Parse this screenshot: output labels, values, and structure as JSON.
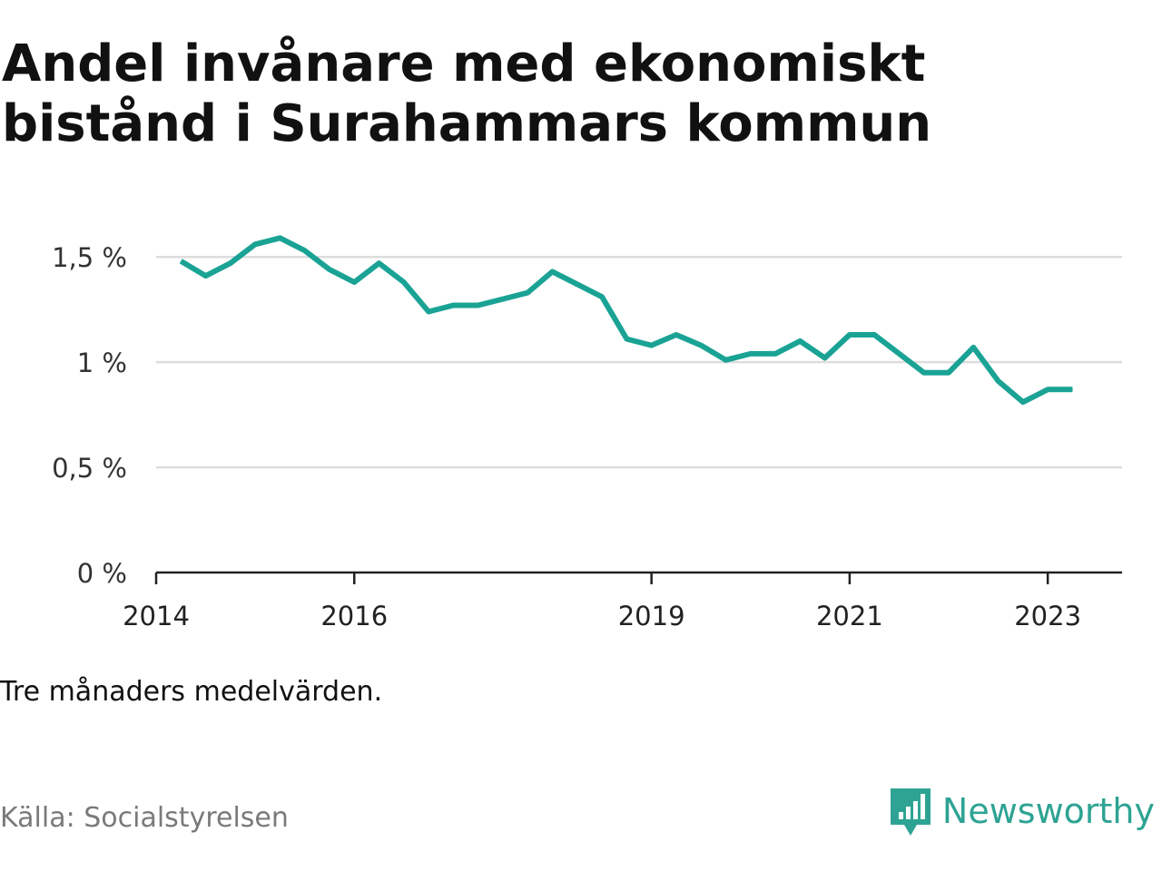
{
  "title": "Andel invånare med ekonomiskt bistånd i Surahammars kommun",
  "note": "Tre månaders medelvärden.",
  "source": "Källa: Socialstyrelsen",
  "brand": {
    "name": "Newsworthy",
    "icon": "newsworthy-logo-icon"
  },
  "colors": {
    "line": "#1aa395",
    "grid": "#dddddd",
    "axis": "#222222",
    "brand": "#2ea393"
  },
  "chart_data": {
    "type": "line",
    "title": "Andel invånare med ekonomiskt bistånd i Surahammars kommun",
    "xlabel": "",
    "ylabel": "",
    "ylim": [
      0,
      1.6
    ],
    "xlim": [
      "2014-01",
      "2023-10"
    ],
    "grid": true,
    "y_ticks": [
      {
        "value": 0,
        "label": "0 %"
      },
      {
        "value": 0.5,
        "label": "0,5 %"
      },
      {
        "value": 1,
        "label": "1 %"
      },
      {
        "value": 1.5,
        "label": "1,5 %"
      }
    ],
    "x_ticks": [
      {
        "value": "2014-01",
        "label": "2014"
      },
      {
        "value": "2016-01",
        "label": "2016"
      },
      {
        "value": "2019-01",
        "label": "2019"
      },
      {
        "value": "2021-01",
        "label": "2021"
      },
      {
        "value": "2023-01",
        "label": "2023"
      }
    ],
    "series": [
      {
        "x": [
          "2014-04",
          "2014-07",
          "2014-10",
          "2015-01",
          "2015-04",
          "2015-07",
          "2015-10",
          "2016-01",
          "2016-04",
          "2016-07",
          "2016-10",
          "2017-01",
          "2017-04",
          "2017-07",
          "2017-10",
          "2018-01",
          "2018-04",
          "2018-07",
          "2018-10",
          "2019-01",
          "2019-04",
          "2019-07",
          "2019-10",
          "2020-01",
          "2020-04",
          "2020-07",
          "2020-10",
          "2021-01",
          "2021-04",
          "2021-07",
          "2021-10",
          "2022-01",
          "2022-04",
          "2022-07",
          "2022-10",
          "2023-01",
          "2023-04"
        ],
        "values": [
          1.48,
          1.41,
          1.47,
          1.56,
          1.59,
          1.53,
          1.44,
          1.38,
          1.47,
          1.38,
          1.24,
          1.27,
          1.27,
          1.3,
          1.33,
          1.43,
          1.37,
          1.31,
          1.11,
          1.08,
          1.13,
          1.08,
          1.01,
          1.04,
          1.04,
          1.1,
          1.02,
          1.13,
          1.13,
          1.04,
          0.95,
          0.95,
          1.07,
          0.91,
          0.81,
          0.87,
          0.87
        ]
      }
    ]
  }
}
